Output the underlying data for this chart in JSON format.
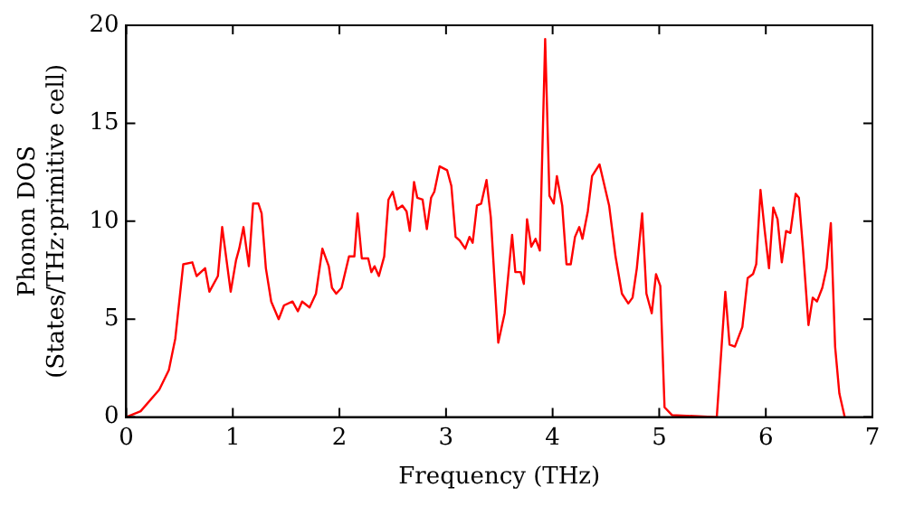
{
  "chart_data": {
    "type": "line",
    "xlabel": "Frequency (THz)",
    "ylabel": "Phonon DOS\n(States/THz·primitive cell)",
    "x": [
      0,
      0.135,
      0.31,
      0.4,
      0.46,
      0.535,
      0.62,
      0.66,
      0.74,
      0.78,
      0.86,
      0.9,
      0.98,
      1.03,
      1.06,
      1.1,
      1.15,
      1.19,
      1.24,
      1.27,
      1.31,
      1.36,
      1.43,
      1.48,
      1.56,
      1.61,
      1.65,
      1.72,
      1.78,
      1.84,
      1.9,
      1.93,
      1.97,
      2.02,
      2.09,
      2.14,
      2.17,
      2.21,
      2.27,
      2.3,
      2.33,
      2.37,
      2.42,
      2.46,
      2.5,
      2.54,
      2.59,
      2.63,
      2.66,
      2.7,
      2.73,
      2.78,
      2.82,
      2.86,
      2.89,
      2.94,
      3.01,
      3.05,
      3.09,
      3.13,
      3.18,
      3.22,
      3.25,
      3.29,
      3.33,
      3.38,
      3.42,
      3.49,
      3.55,
      3.62,
      3.65,
      3.7,
      3.73,
      3.76,
      3.8,
      3.84,
      3.88,
      3.93,
      3.97,
      4.01,
      4.04,
      4.09,
      4.13,
      4.17,
      4.21,
      4.25,
      4.28,
      4.33,
      4.37,
      4.44,
      4.53,
      4.59,
      4.65,
      4.71,
      4.75,
      4.79,
      4.84,
      4.88,
      4.93,
      4.97,
      5.01,
      5.05,
      5.12,
      5.54,
      5.62,
      5.66,
      5.71,
      5.78,
      5.83,
      5.88,
      5.91,
      5.95,
      5.99,
      6.03,
      6.07,
      6.11,
      6.15,
      6.19,
      6.23,
      6.28,
      6.31,
      6.35,
      6.4,
      6.44,
      6.48,
      6.53,
      6.57,
      6.61,
      6.65,
      6.69,
      6.74
    ],
    "series": [
      {
        "color": "#ff0000",
        "values": [
          0,
          0.3,
          1.4,
          2.4,
          4.0,
          7.8,
          7.9,
          7.2,
          7.6,
          6.4,
          7.2,
          9.7,
          6.4,
          8.0,
          8.6,
          9.7,
          7.7,
          10.9,
          10.9,
          10.4,
          7.6,
          5.9,
          5.0,
          5.7,
          5.9,
          5.4,
          5.9,
          5.6,
          6.3,
          8.6,
          7.7,
          6.6,
          6.3,
          6.6,
          8.2,
          8.2,
          10.4,
          8.1,
          8.1,
          7.4,
          7.7,
          7.2,
          8.2,
          11.1,
          11.5,
          10.6,
          10.8,
          10.5,
          9.5,
          12.0,
          11.2,
          11.1,
          9.6,
          11.2,
          11.5,
          12.8,
          12.6,
          11.8,
          9.2,
          9.0,
          8.6,
          9.2,
          8.9,
          10.8,
          10.9,
          12.1,
          10.2,
          3.8,
          5.3,
          9.3,
          7.4,
          7.4,
          6.8,
          10.1,
          8.7,
          9.1,
          8.5,
          19.3,
          11.3,
          10.9,
          12.3,
          10.8,
          7.8,
          7.8,
          9.2,
          9.7,
          9.1,
          10.5,
          12.3,
          12.9,
          10.8,
          8.2,
          6.3,
          5.8,
          6.1,
          7.6,
          10.4,
          6.3,
          5.3,
          7.3,
          6.7,
          0.5,
          0.1,
          0,
          6.4,
          3.7,
          3.6,
          4.6,
          7.1,
          7.3,
          7.8,
          11.6,
          9.5,
          7.6,
          10.7,
          10.1,
          7.9,
          9.5,
          9.4,
          11.4,
          11.2,
          8.5,
          4.7,
          6.1,
          5.9,
          6.6,
          7.6,
          9.9,
          3.6,
          1.2,
          0
        ]
      }
    ],
    "xlim": [
      0,
      7
    ],
    "xticks": [
      0,
      1,
      2,
      3,
      4,
      5,
      6,
      7
    ],
    "ylim": [
      0,
      20
    ],
    "yticks": [
      0,
      5,
      10,
      15,
      20
    ],
    "grid": false,
    "legend": false,
    "marker": "none",
    "line_style": "solid"
  }
}
